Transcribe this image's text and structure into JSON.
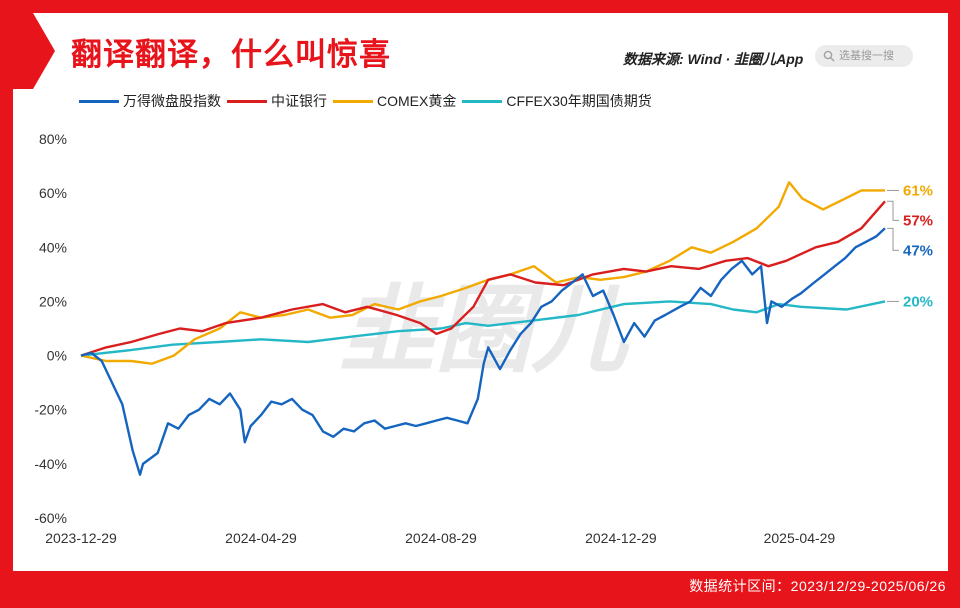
{
  "header": {
    "title": "翻译翻译，什么叫惊喜",
    "source_label": "数据来源: Wind · ",
    "source_brand": "韭圈儿App",
    "search_placeholder": "选基搜一搜"
  },
  "footer": {
    "stats_range": "数据统计区间：2023/12/29-2025/06/26"
  },
  "watermark": "韭圈儿",
  "colors": {
    "frame": "#e8141b",
    "title": "#e8141b"
  },
  "chart_data": {
    "type": "line",
    "title": "",
    "xlabel": "",
    "ylabel": "",
    "x_ticks": [
      "2023-12-29",
      "2024-04-29",
      "2024-08-29",
      "2024-12-29",
      "2025-04-29"
    ],
    "x_range": [
      "2023-12-29",
      "2025-06-26"
    ],
    "y_ticks": [
      "80%",
      "60%",
      "40%",
      "20%",
      "0%",
      "-20%",
      "-40%",
      "-60%"
    ],
    "ylim": [
      -60,
      80
    ],
    "grid": false,
    "legend_position": "top-left",
    "series": [
      {
        "name": "万得微盘股指数",
        "color": "#1565c0",
        "end_label": "47%",
        "points": [
          [
            "2023-12-29",
            0
          ],
          [
            "2024-01-05",
            1
          ],
          [
            "2024-01-12",
            -2
          ],
          [
            "2024-01-19",
            -10
          ],
          [
            "2024-01-26",
            -18
          ],
          [
            "2024-02-02",
            -35
          ],
          [
            "2024-02-07",
            -44
          ],
          [
            "2024-02-09",
            -40
          ],
          [
            "2024-02-19",
            -36
          ],
          [
            "2024-02-26",
            -25
          ],
          [
            "2024-03-04",
            -27
          ],
          [
            "2024-03-11",
            -22
          ],
          [
            "2024-03-18",
            -20
          ],
          [
            "2024-03-25",
            -16
          ],
          [
            "2024-04-01",
            -18
          ],
          [
            "2024-04-08",
            -14
          ],
          [
            "2024-04-15",
            -20
          ],
          [
            "2024-04-18",
            -32
          ],
          [
            "2024-04-22",
            -26
          ],
          [
            "2024-04-29",
            -22
          ],
          [
            "2024-05-06",
            -17
          ],
          [
            "2024-05-13",
            -18
          ],
          [
            "2024-05-20",
            -16
          ],
          [
            "2024-05-27",
            -20
          ],
          [
            "2024-06-03",
            -22
          ],
          [
            "2024-06-10",
            -28
          ],
          [
            "2024-06-17",
            -30
          ],
          [
            "2024-06-24",
            -27
          ],
          [
            "2024-07-01",
            -28
          ],
          [
            "2024-07-08",
            -25
          ],
          [
            "2024-07-15",
            -24
          ],
          [
            "2024-07-22",
            -27
          ],
          [
            "2024-07-29",
            -26
          ],
          [
            "2024-08-05",
            -25
          ],
          [
            "2024-08-12",
            -26
          ],
          [
            "2024-08-19",
            -25
          ],
          [
            "2024-08-26",
            -24
          ],
          [
            "2024-09-02",
            -23
          ],
          [
            "2024-09-09",
            -24
          ],
          [
            "2024-09-16",
            -25
          ],
          [
            "2024-09-23",
            -16
          ],
          [
            "2024-09-27",
            -3
          ],
          [
            "2024-09-30",
            3
          ],
          [
            "2024-10-08",
            -5
          ],
          [
            "2024-10-15",
            2
          ],
          [
            "2024-10-22",
            8
          ],
          [
            "2024-10-29",
            12
          ],
          [
            "2024-11-05",
            18
          ],
          [
            "2024-11-12",
            20
          ],
          [
            "2024-11-19",
            24
          ],
          [
            "2024-11-26",
            27
          ],
          [
            "2024-12-03",
            30
          ],
          [
            "2024-12-10",
            22
          ],
          [
            "2024-12-17",
            24
          ],
          [
            "2024-12-24",
            15
          ],
          [
            "2024-12-31",
            5
          ],
          [
            "2025-01-07",
            12
          ],
          [
            "2025-01-14",
            7
          ],
          [
            "2025-01-21",
            13
          ],
          [
            "2025-01-28",
            15
          ],
          [
            "2025-02-07",
            18
          ],
          [
            "2025-02-14",
            20
          ],
          [
            "2025-02-21",
            25
          ],
          [
            "2025-02-28",
            22
          ],
          [
            "2025-03-07",
            28
          ],
          [
            "2025-03-14",
            32
          ],
          [
            "2025-03-21",
            35
          ],
          [
            "2025-03-28",
            30
          ],
          [
            "2025-04-03",
            33
          ],
          [
            "2025-04-07",
            12
          ],
          [
            "2025-04-10",
            20
          ],
          [
            "2025-04-17",
            18
          ],
          [
            "2025-04-24",
            21
          ],
          [
            "2025-04-30",
            23
          ],
          [
            "2025-05-09",
            27
          ],
          [
            "2025-05-16",
            30
          ],
          [
            "2025-05-23",
            33
          ],
          [
            "2025-05-30",
            36
          ],
          [
            "2025-06-06",
            40
          ],
          [
            "2025-06-13",
            42
          ],
          [
            "2025-06-20",
            44
          ],
          [
            "2025-06-26",
            47
          ]
        ]
      },
      {
        "name": "中证银行",
        "color": "#d91e1e",
        "end_label": "57%",
        "points": [
          [
            "2023-12-29",
            0
          ],
          [
            "2024-01-15",
            3
          ],
          [
            "2024-02-01",
            5
          ],
          [
            "2024-02-20",
            8
          ],
          [
            "2024-03-05",
            10
          ],
          [
            "2024-03-20",
            9
          ],
          [
            "2024-04-05",
            12
          ],
          [
            "2024-04-29",
            14
          ],
          [
            "2024-05-20",
            17
          ],
          [
            "2024-06-10",
            19
          ],
          [
            "2024-06-25",
            16
          ],
          [
            "2024-07-10",
            18
          ],
          [
            "2024-07-30",
            15
          ],
          [
            "2024-08-15",
            12
          ],
          [
            "2024-08-26",
            8
          ],
          [
            "2024-09-05",
            10
          ],
          [
            "2024-09-20",
            18
          ],
          [
            "2024-09-30",
            28
          ],
          [
            "2024-10-15",
            30
          ],
          [
            "2024-11-01",
            27
          ],
          [
            "2024-11-20",
            26
          ],
          [
            "2024-12-10",
            30
          ],
          [
            "2024-12-31",
            32
          ],
          [
            "2025-01-15",
            31
          ],
          [
            "2025-02-01",
            33
          ],
          [
            "2025-02-20",
            32
          ],
          [
            "2025-03-10",
            35
          ],
          [
            "2025-03-25",
            36
          ],
          [
            "2025-04-08",
            33
          ],
          [
            "2025-04-20",
            35
          ],
          [
            "2025-05-10",
            40
          ],
          [
            "2025-05-25",
            42
          ],
          [
            "2025-06-10",
            47
          ],
          [
            "2025-06-26",
            57
          ]
        ]
      },
      {
        "name": "COMEX黄金",
        "color": "#f2a900",
        "end_label": "61%",
        "points": [
          [
            "2023-12-29",
            0
          ],
          [
            "2024-01-15",
            -2
          ],
          [
            "2024-02-01",
            -2
          ],
          [
            "2024-02-15",
            -3
          ],
          [
            "2024-03-01",
            0
          ],
          [
            "2024-03-15",
            6
          ],
          [
            "2024-04-01",
            10
          ],
          [
            "2024-04-15",
            16
          ],
          [
            "2024-04-29",
            14
          ],
          [
            "2024-05-15",
            15
          ],
          [
            "2024-05-31",
            17
          ],
          [
            "2024-06-15",
            14
          ],
          [
            "2024-06-30",
            15
          ],
          [
            "2024-07-15",
            19
          ],
          [
            "2024-07-31",
            17
          ],
          [
            "2024-08-15",
            20
          ],
          [
            "2024-08-29",
            22
          ],
          [
            "2024-09-15",
            25
          ],
          [
            "2024-09-30",
            28
          ],
          [
            "2024-10-15",
            30
          ],
          [
            "2024-10-31",
            33
          ],
          [
            "2024-11-15",
            27
          ],
          [
            "2024-12-01",
            29
          ],
          [
            "2024-12-15",
            28
          ],
          [
            "2024-12-31",
            29
          ],
          [
            "2025-01-15",
            31
          ],
          [
            "2025-01-31",
            35
          ],
          [
            "2025-02-15",
            40
          ],
          [
            "2025-02-28",
            38
          ],
          [
            "2025-03-15",
            42
          ],
          [
            "2025-03-31",
            47
          ],
          [
            "2025-04-15",
            55
          ],
          [
            "2025-04-22",
            64
          ],
          [
            "2025-05-01",
            58
          ],
          [
            "2025-05-15",
            54
          ],
          [
            "2025-05-30",
            58
          ],
          [
            "2025-06-10",
            61
          ],
          [
            "2025-06-26",
            61
          ]
        ]
      },
      {
        "name": "CFFEX30年期国债期货",
        "color": "#24b8c6",
        "end_label": "20%",
        "points": [
          [
            "2023-12-29",
            0
          ],
          [
            "2024-01-31",
            2
          ],
          [
            "2024-02-29",
            4
          ],
          [
            "2024-03-31",
            5
          ],
          [
            "2024-04-29",
            6
          ],
          [
            "2024-05-31",
            5
          ],
          [
            "2024-06-30",
            7
          ],
          [
            "2024-07-31",
            9
          ],
          [
            "2024-08-29",
            10
          ],
          [
            "2024-09-15",
            12
          ],
          [
            "2024-09-30",
            11
          ],
          [
            "2024-10-31",
            13
          ],
          [
            "2024-11-30",
            15
          ],
          [
            "2024-12-31",
            19
          ],
          [
            "2025-01-31",
            20
          ],
          [
            "2025-02-28",
            19
          ],
          [
            "2025-03-15",
            17
          ],
          [
            "2025-03-31",
            16
          ],
          [
            "2025-04-15",
            19
          ],
          [
            "2025-04-30",
            18
          ],
          [
            "2025-05-31",
            17
          ],
          [
            "2025-06-26",
            20
          ]
        ]
      }
    ]
  }
}
